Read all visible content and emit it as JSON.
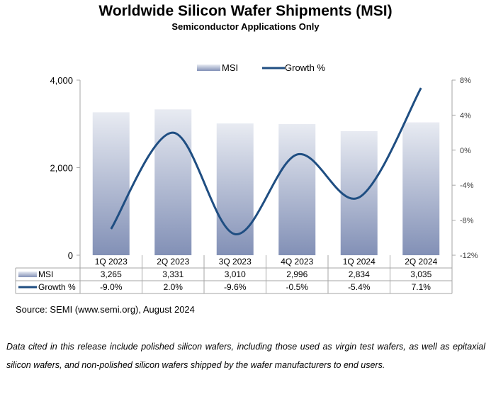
{
  "chart_data": {
    "type": "bar",
    "title": "Worldwide Silicon Wafer Shipments (MSI)",
    "subtitle": "Semiconductor Applications Only",
    "categories": [
      "1Q 2023",
      "2Q 2023",
      "3Q 2023",
      "4Q 2023",
      "1Q 2024",
      "2Q 2024"
    ],
    "series": [
      {
        "name": "MSI",
        "type": "bar",
        "axis": "left",
        "values": [
          3265,
          3331,
          3010,
          2996,
          2834,
          3035
        ],
        "labels": [
          "3,265",
          "3,331",
          "3,010",
          "2,996",
          "2,834",
          "3,035"
        ]
      },
      {
        "name": "Growth %",
        "type": "line",
        "axis": "right",
        "values": [
          -9.0,
          2.0,
          -9.6,
          -0.5,
          -5.4,
          7.1
        ],
        "labels": [
          "-9.0%",
          "2.0%",
          "-9.6%",
          "-0.5%",
          "-5.4%",
          "7.1%"
        ]
      }
    ],
    "ylim_left": [
      0,
      4000
    ],
    "yticks_left": [
      "0",
      "2,000",
      "4,000"
    ],
    "ylim_right": [
      -12,
      8
    ],
    "yticks_right": [
      "-12%",
      "-8%",
      "-4%",
      "0%",
      "4%",
      "8%"
    ],
    "legend_position": "top-center",
    "data_table": true,
    "grid": false,
    "colors": {
      "bar_top": "#e8ebf2",
      "bar_bottom": "#8290b6",
      "line": "#1f4e82"
    }
  },
  "source": "Source: SEMI (www.semi.org), August 2024",
  "note": "Data cited in this release include polished silicon wafers, including those used as virgin test wafers, as well as epitaxial silicon wafers, and non-polished silicon wafers shipped by the wafer manufacturers to end users."
}
